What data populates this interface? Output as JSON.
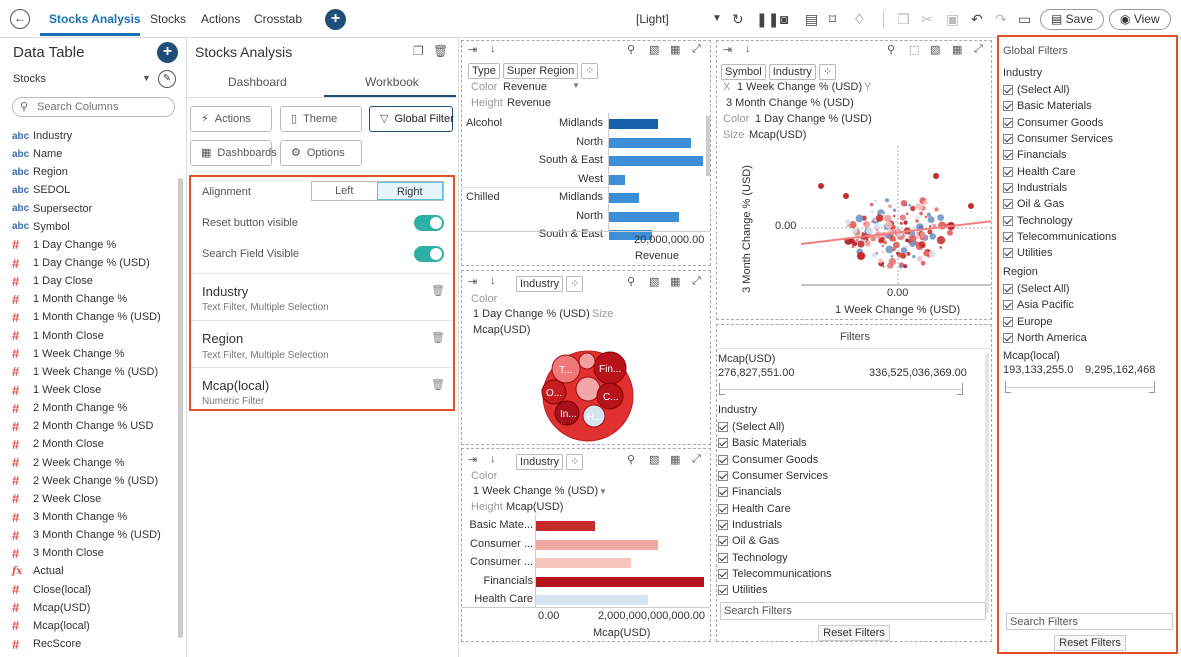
{
  "topbar": {
    "tabs": [
      {
        "label": "Stocks Analysis",
        "active": true
      },
      {
        "label": "Stocks"
      },
      {
        "label": "Actions"
      },
      {
        "label": "Crosstab"
      }
    ],
    "theme": "[Light]",
    "save_label": "Save",
    "view_label": "View"
  },
  "data_table": {
    "title": "Data Table",
    "source": "Stocks",
    "search_placeholder": "Search Columns",
    "columns": [
      {
        "type": "abc",
        "name": "Industry"
      },
      {
        "type": "abc",
        "name": "Name"
      },
      {
        "type": "abc",
        "name": "Region"
      },
      {
        "type": "abc",
        "name": "SEDOL"
      },
      {
        "type": "abc",
        "name": "Supersector"
      },
      {
        "type": "abc",
        "name": "Symbol"
      },
      {
        "type": "#",
        "name": "1 Day Change %"
      },
      {
        "type": "#",
        "name": "1 Day Change % (USD)"
      },
      {
        "type": "#",
        "name": "1 Day Close"
      },
      {
        "type": "#",
        "name": "1 Month Change %"
      },
      {
        "type": "#",
        "name": "1 Month Change % (USD)"
      },
      {
        "type": "#",
        "name": "1 Month Close"
      },
      {
        "type": "#",
        "name": "1 Week Change %"
      },
      {
        "type": "#",
        "name": "1 Week Change % (USD)"
      },
      {
        "type": "#",
        "name": "1 Week Close"
      },
      {
        "type": "#",
        "name": "2 Month Change %"
      },
      {
        "type": "#",
        "name": "2 Month Change % USD"
      },
      {
        "type": "#",
        "name": "2 Month Close"
      },
      {
        "type": "#",
        "name": "2 Week Change %"
      },
      {
        "type": "#",
        "name": "2 Week Change % (USD)"
      },
      {
        "type": "#",
        "name": "2 Week Close"
      },
      {
        "type": "#",
        "name": "3 Month Change %"
      },
      {
        "type": "#",
        "name": "3 Month Change % (USD)"
      },
      {
        "type": "#",
        "name": "3 Month Close"
      },
      {
        "type": "fx",
        "name": "Actual"
      },
      {
        "type": "#",
        "name": "Close(local)"
      },
      {
        "type": "#",
        "name": "Mcap(USD)"
      },
      {
        "type": "#",
        "name": "Mcap(local)"
      },
      {
        "type": "#",
        "name": "RecScore"
      }
    ]
  },
  "workbook": {
    "title": "Stocks Analysis",
    "tabs": {
      "dashboard": "Dashboard",
      "workbook": "Workbook"
    },
    "buttons": {
      "actions": "Actions",
      "theme": "Theme",
      "global_filter": "Global Filter",
      "dashboards": "Dashboards",
      "options": "Options"
    },
    "global_filter": {
      "alignment_label": "Alignment",
      "left": "Left",
      "right": "Right",
      "selected_alignment": "Right",
      "reset_visible_label": "Reset button visible",
      "search_visible_label": "Search Field Visible",
      "reset_visible": true,
      "search_visible": true,
      "filters": [
        {
          "name": "Industry",
          "desc": "Text Filter, Multiple Selection"
        },
        {
          "name": "Region",
          "desc": "Text Filter, Multiple Selection"
        },
        {
          "name": "Mcap(local)",
          "desc": "Numeric Filter"
        }
      ]
    }
  },
  "pane_bar": {
    "controls": {
      "type": "Type",
      "super_region": "Super Region"
    },
    "color_label": "Color",
    "color_value": "Revenue",
    "height_label": "Height",
    "height_value": "Revenue",
    "rows": [
      {
        "group": "Alcohol",
        "label": "Midlands",
        "value": 10200000000
      },
      {
        "group": "",
        "label": "North",
        "value": 17000000000
      },
      {
        "group": "",
        "label": "South & East",
        "value": 19500000000
      },
      {
        "group": "",
        "label": "West",
        "value": 3400000000
      },
      {
        "group": "Chilled",
        "label": "Midlands",
        "value": 6300000000
      },
      {
        "group": "",
        "label": "North",
        "value": 14500000000
      },
      {
        "group": "",
        "label": "South & East",
        "value": 9000000000
      }
    ],
    "axis_tick": "20,000,000.00",
    "axis_label": "Revenue"
  },
  "pane_bubble": {
    "control": "Industry",
    "color_label": "Color",
    "color_value": "1 Day Change % (USD)",
    "size_label": "Size",
    "size_value": "Mcap(USD)",
    "bubbles": [
      "T...",
      "Fin...",
      "O...",
      "C...",
      "In...",
      "H..."
    ]
  },
  "pane_hbar": {
    "control": "Industry",
    "color_label": "Color",
    "color_value": "1 Week Change % (USD)",
    "height_label": "Height",
    "height_value": "Mcap(USD)",
    "rows": [
      {
        "label": "Basic Mate...",
        "value": 1050000000000,
        "color": "#c62a2a"
      },
      {
        "label": "Consumer ...",
        "value": 2180000000000,
        "color": "#f0a8a0"
      },
      {
        "label": "Consumer ...",
        "value": 1700000000000,
        "color": "#f5c4bc"
      },
      {
        "label": "Financials",
        "value": 3000000000000,
        "color": "#b5121b"
      },
      {
        "label": "Health Care",
        "value": 2000000000000,
        "color": "#d5e4ee"
      }
    ],
    "ticks": [
      "0.00",
      "2,000,000,000,000.00"
    ],
    "axis_label": "Mcap(USD)"
  },
  "pane_scatter": {
    "controls": {
      "symbol": "Symbol",
      "industry": "Industry"
    },
    "x_label": "X",
    "x_value": "1 Week Change % (USD)",
    "y_label": "Y",
    "y_value": "3 Month Change % (USD)",
    "color_label": "Color",
    "color_value": "1 Day Change % (USD)",
    "size_label": "Size",
    "size_value": "Mcap(USD)",
    "y_axis_title": "3 Month Change % (USD)",
    "x_axis_title": "1 Week Change % (USD)",
    "y_tick": "0.00",
    "x_tick": "0.00"
  },
  "pane_filters": {
    "title": "Filters",
    "mcap_label": "Mcap(USD)",
    "mcap_min": "276,827,551.00",
    "mcap_max": "336,525,036,369.00",
    "industry_label": "Industry",
    "items": [
      "(Select All)",
      "Basic Materials",
      "Consumer Goods",
      "Consumer Services",
      "Financials",
      "Health Care",
      "Industrials",
      "Oil & Gas",
      "Technology",
      "Telecommunications",
      "Utilities"
    ],
    "search_placeholder": "Search Filters",
    "reset_label": "Reset Filters"
  },
  "global_filters_panel": {
    "title": "Global Filters",
    "industry_label": "Industry",
    "industry_items": [
      "(Select All)",
      "Basic Materials",
      "Consumer Goods",
      "Consumer Services",
      "Financials",
      "Health Care",
      "Industrials",
      "Oil & Gas",
      "Technology",
      "Telecommunications",
      "Utilities"
    ],
    "region_label": "Region",
    "region_items": [
      "(Select All)",
      "Asia Pacific",
      "Europe",
      "North America"
    ],
    "mcap_label": "Mcap(local)",
    "mcap_min": "193,133,255.0",
    "mcap_max": "9,295,162,468",
    "search_placeholder": "Search Filters",
    "reset_label": "Reset Filters"
  },
  "colors": {
    "accent": "#1a6fb5",
    "highlight": "#e0512a",
    "toggle": "#2eb0a4",
    "bar_blue": "#1f77c8"
  }
}
